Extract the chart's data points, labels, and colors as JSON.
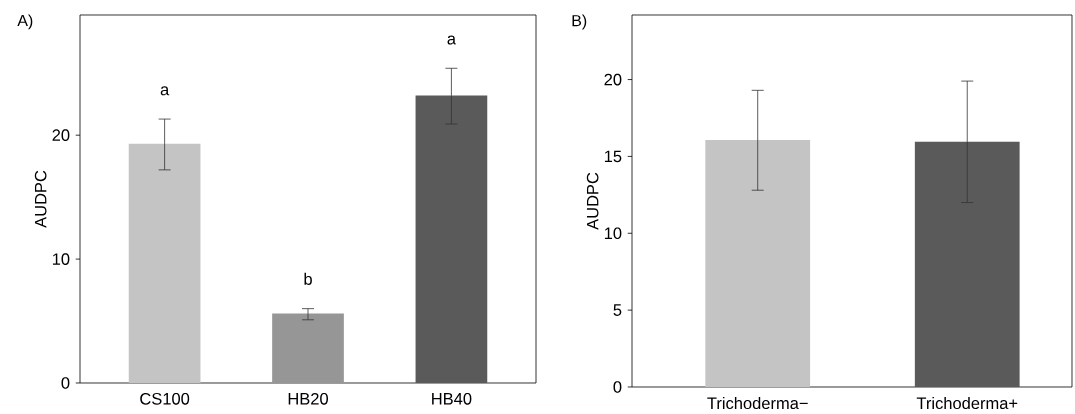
{
  "chart_data": [
    {
      "type": "bar",
      "title": "A)",
      "ylabel": "AUDPC",
      "categories": [
        "CS100",
        "HB20",
        "HB40"
      ],
      "values": [
        19.3,
        5.6,
        23.2
      ],
      "colors": [
        "#c4c4c4",
        "#969696",
        "#5a5a5a"
      ],
      "errors": [
        [
          17.2,
          21.3
        ],
        [
          5.1,
          6.0
        ],
        [
          20.9,
          25.4
        ]
      ],
      "ylim": [
        0,
        29.7
      ],
      "yticks": [
        0,
        10,
        20
      ],
      "annotations": [
        "a",
        "b",
        "a"
      ]
    },
    {
      "type": "bar",
      "title": "B)",
      "ylabel": "AUDPC",
      "categories": [
        "Trichoderma−",
        "Trichoderma+"
      ],
      "values": [
        16.06,
        15.95
      ],
      "colors": [
        "#c4c4c4",
        "#5a5a5a"
      ],
      "errors": [
        [
          12.8,
          19.3
        ],
        [
          12.0,
          19.9
        ]
      ],
      "ylim": [
        0,
        24.2
      ],
      "yticks": [
        0,
        5,
        10,
        15,
        20
      ]
    }
  ]
}
